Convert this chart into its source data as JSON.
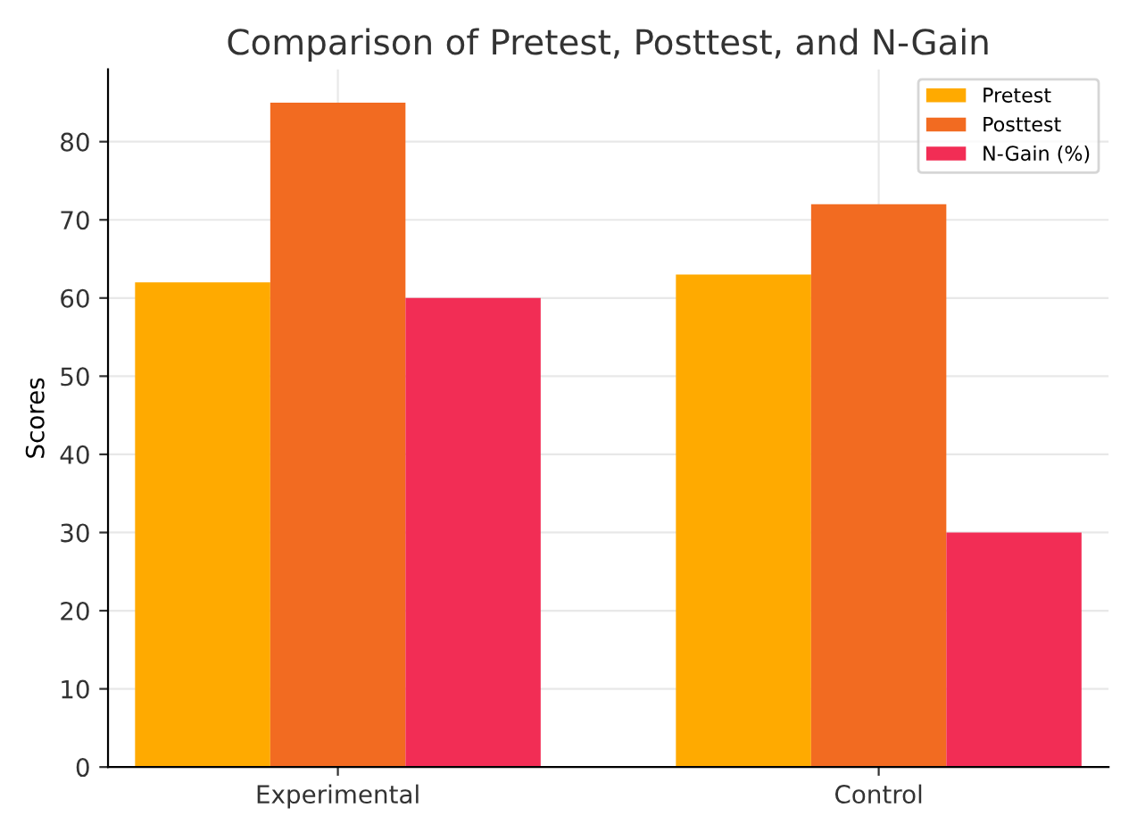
{
  "chart_data": {
    "type": "bar",
    "title": "Comparison of Pretest, Posttest, and N-Gain",
    "ylabel": "Scores",
    "categories": [
      "Experimental",
      "Control"
    ],
    "series": [
      {
        "name": "Pretest",
        "color": "#ffaa00",
        "values": [
          62,
          63
        ]
      },
      {
        "name": "Posttest",
        "color": "#f26b21",
        "values": [
          85,
          72
        ]
      },
      {
        "name": "N-Gain (%)",
        "color": "#f22d55",
        "values": [
          60,
          30
        ]
      }
    ],
    "ylim": [
      0,
      89.25
    ],
    "yticks": [
      0,
      10,
      20,
      30,
      40,
      50,
      60,
      70,
      80
    ],
    "grid": true,
    "legend": "top right"
  }
}
